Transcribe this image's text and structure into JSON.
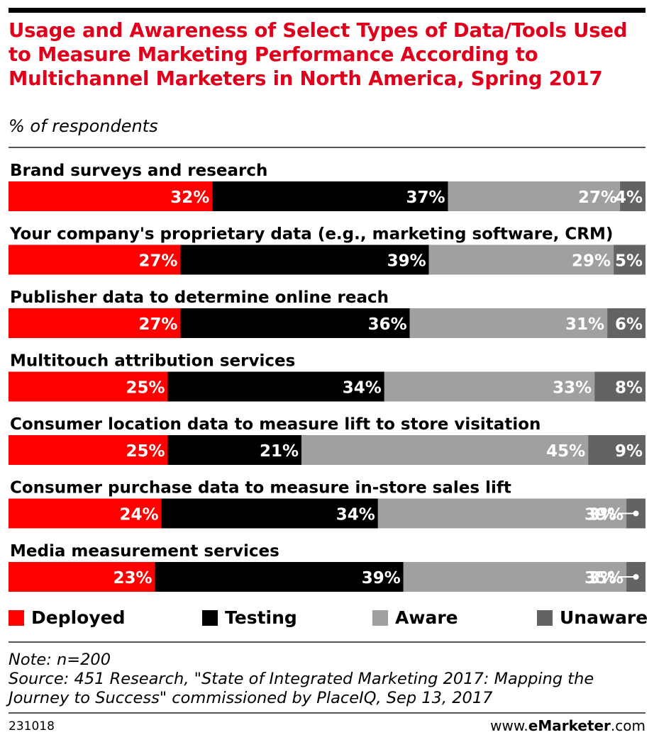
{
  "header": {
    "title": "Usage and Awareness of Select Types of Data/Tools Used to Measure Marketing Performance According to Multichannel Marketers in North America, Spring 2017",
    "subtitle": "% of respondents"
  },
  "chart_data": {
    "type": "bar",
    "orientation": "horizontal",
    "stacked": true,
    "categories": [
      "Brand surveys and research",
      "Your company's proprietary data (e.g., marketing software, CRM)",
      "Publisher data to determine online reach",
      "Multitouch attribution services",
      "Consumer location data to measure lift to store visitation",
      "Consumer purchase data to measure in-store sales lift",
      "Media measurement services"
    ],
    "series": [
      {
        "name": "Deployed",
        "color": "#ff0000",
        "values": [
          32,
          27,
          27,
          25,
          25,
          24,
          23
        ]
      },
      {
        "name": "Testing",
        "color": "#000000",
        "values": [
          37,
          39,
          36,
          34,
          21,
          34,
          39
        ]
      },
      {
        "name": "Aware",
        "color": "#a0a0a0",
        "values": [
          27,
          29,
          31,
          33,
          45,
          39,
          35
        ]
      },
      {
        "name": "Unaware",
        "color": "#636363",
        "values": [
          4,
          5,
          6,
          8,
          9,
          3,
          3
        ]
      }
    ],
    "value_suffix": "%",
    "legend_position": "bottom",
    "grid": false
  },
  "legend": [
    "Deployed",
    "Testing",
    "Aware",
    "Unaware"
  ],
  "footer": {
    "note": "Note: n=200",
    "source": "Source: 451 Research, \"State of Integrated Marketing 2017: Mapping the Journey to Success\" commissioned by PlaceIQ, Sep 13, 2017",
    "chart_id": "231018",
    "brand_prefix": "www.",
    "brand_name": "eMarketer",
    "brand_suffix": ".com"
  }
}
